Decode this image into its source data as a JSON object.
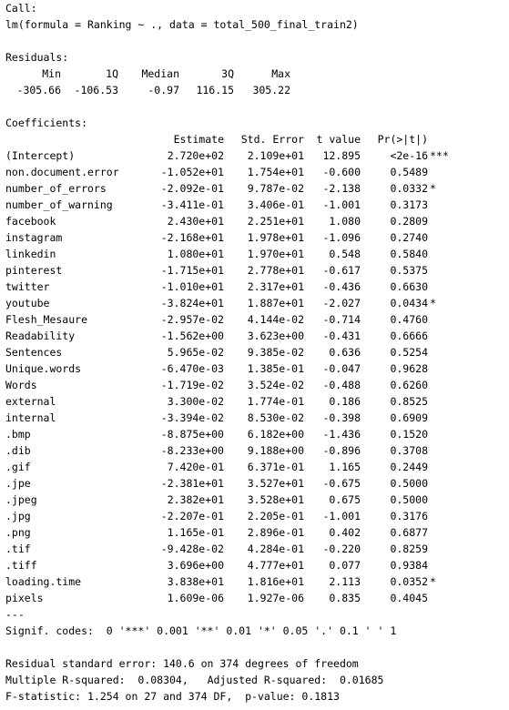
{
  "call": {
    "heading": "Call:",
    "formula": "lm(formula = Ranking ~ ., data = total_500_final_train2)"
  },
  "residuals": {
    "heading": "Residuals:",
    "headers": [
      "Min",
      "1Q",
      "Median",
      "3Q",
      "Max"
    ],
    "values": [
      "-305.66",
      "-106.53",
      "-0.97",
      "116.15",
      "305.22"
    ]
  },
  "coefficients": {
    "heading": "Coefficients:",
    "columns": [
      "Estimate",
      "Std. Error",
      "t value",
      "Pr(>|t|)"
    ],
    "rows": [
      {
        "name": "(Intercept)",
        "estimate": "2.720e+02",
        "std_error": "2.109e+01",
        "t_value": "12.895",
        "p_value": "<2e-16",
        "signif": "***"
      },
      {
        "name": "non.document.error",
        "estimate": "-1.052e+01",
        "std_error": "1.754e+01",
        "t_value": "-0.600",
        "p_value": "0.5489",
        "signif": ""
      },
      {
        "name": "number_of_errors",
        "estimate": "-2.092e-01",
        "std_error": "9.787e-02",
        "t_value": "-2.138",
        "p_value": "0.0332",
        "signif": "*"
      },
      {
        "name": "number_of_warning",
        "estimate": "-3.411e-01",
        "std_error": "3.406e-01",
        "t_value": "-1.001",
        "p_value": "0.3173",
        "signif": ""
      },
      {
        "name": "facebook",
        "estimate": "2.430e+01",
        "std_error": "2.251e+01",
        "t_value": "1.080",
        "p_value": "0.2809",
        "signif": ""
      },
      {
        "name": "instagram",
        "estimate": "-2.168e+01",
        "std_error": "1.978e+01",
        "t_value": "-1.096",
        "p_value": "0.2740",
        "signif": ""
      },
      {
        "name": "linkedin",
        "estimate": "1.080e+01",
        "std_error": "1.970e+01",
        "t_value": "0.548",
        "p_value": "0.5840",
        "signif": ""
      },
      {
        "name": "pinterest",
        "estimate": "-1.715e+01",
        "std_error": "2.778e+01",
        "t_value": "-0.617",
        "p_value": "0.5375",
        "signif": ""
      },
      {
        "name": "twitter",
        "estimate": "-1.010e+01",
        "std_error": "2.317e+01",
        "t_value": "-0.436",
        "p_value": "0.6630",
        "signif": ""
      },
      {
        "name": "youtube",
        "estimate": "-3.824e+01",
        "std_error": "1.887e+01",
        "t_value": "-2.027",
        "p_value": "0.0434",
        "signif": "*"
      },
      {
        "name": "Flesh_Mesaure",
        "estimate": "-2.957e-02",
        "std_error": "4.144e-02",
        "t_value": "-0.714",
        "p_value": "0.4760",
        "signif": ""
      },
      {
        "name": "Readability",
        "estimate": "-1.562e+00",
        "std_error": "3.623e+00",
        "t_value": "-0.431",
        "p_value": "0.6666",
        "signif": ""
      },
      {
        "name": "Sentences",
        "estimate": "5.965e-02",
        "std_error": "9.385e-02",
        "t_value": "0.636",
        "p_value": "0.5254",
        "signif": ""
      },
      {
        "name": "Unique.words",
        "estimate": "-6.470e-03",
        "std_error": "1.385e-01",
        "t_value": "-0.047",
        "p_value": "0.9628",
        "signif": ""
      },
      {
        "name": "Words",
        "estimate": "-1.719e-02",
        "std_error": "3.524e-02",
        "t_value": "-0.488",
        "p_value": "0.6260",
        "signif": ""
      },
      {
        "name": "external",
        "estimate": "3.300e-02",
        "std_error": "1.774e-01",
        "t_value": "0.186",
        "p_value": "0.8525",
        "signif": ""
      },
      {
        "name": "internal",
        "estimate": "-3.394e-02",
        "std_error": "8.530e-02",
        "t_value": "-0.398",
        "p_value": "0.6909",
        "signif": ""
      },
      {
        "name": ".bmp",
        "estimate": "-8.875e+00",
        "std_error": "6.182e+00",
        "t_value": "-1.436",
        "p_value": "0.1520",
        "signif": ""
      },
      {
        "name": ".dib",
        "estimate": "-8.233e+00",
        "std_error": "9.188e+00",
        "t_value": "-0.896",
        "p_value": "0.3708",
        "signif": ""
      },
      {
        "name": ".gif",
        "estimate": "7.420e-01",
        "std_error": "6.371e-01",
        "t_value": "1.165",
        "p_value": "0.2449",
        "signif": ""
      },
      {
        "name": ".jpe",
        "estimate": "-2.381e+01",
        "std_error": "3.527e+01",
        "t_value": "-0.675",
        "p_value": "0.5000",
        "signif": ""
      },
      {
        "name": ".jpeg",
        "estimate": "2.382e+01",
        "std_error": "3.528e+01",
        "t_value": "0.675",
        "p_value": "0.5000",
        "signif": ""
      },
      {
        "name": ".jpg",
        "estimate": "-2.207e-01",
        "std_error": "2.205e-01",
        "t_value": "-1.001",
        "p_value": "0.3176",
        "signif": ""
      },
      {
        "name": ".png",
        "estimate": "1.165e-01",
        "std_error": "2.896e-01",
        "t_value": "0.402",
        "p_value": "0.6877",
        "signif": ""
      },
      {
        "name": ".tif",
        "estimate": "-9.428e-02",
        "std_error": "4.284e-01",
        "t_value": "-0.220",
        "p_value": "0.8259",
        "signif": ""
      },
      {
        "name": ".tiff",
        "estimate": "3.696e+00",
        "std_error": "4.777e+01",
        "t_value": "0.077",
        "p_value": "0.9384",
        "signif": ""
      },
      {
        "name": "loading.time",
        "estimate": "3.838e+01",
        "std_error": "1.816e+01",
        "t_value": "2.113",
        "p_value": "0.0352",
        "signif": "*"
      },
      {
        "name": "pixels",
        "estimate": "1.609e-06",
        "std_error": "1.927e-06",
        "t_value": "0.835",
        "p_value": "0.4045",
        "signif": ""
      }
    ]
  },
  "separator": "---",
  "signif_codes": "Signif. codes:  0 '***' 0.001 '**' 0.01 '*' 0.05 '.' 0.1 ' ' 1",
  "footer": {
    "residual_se": "Residual standard error: 140.6 on 374 degrees of freedom",
    "r_squared": "Multiple R-squared:  0.08304,\tAdjusted R-squared:  0.01685",
    "f_statistic": "F-statistic: 1.254 on 27 and 374 DF,  p-value: 0.1813"
  }
}
